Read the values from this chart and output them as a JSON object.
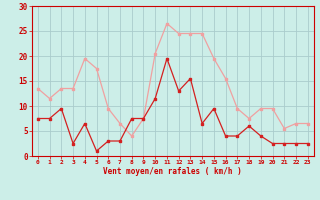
{
  "hours": [
    0,
    1,
    2,
    3,
    4,
    5,
    6,
    7,
    8,
    9,
    10,
    11,
    12,
    13,
    14,
    15,
    16,
    17,
    18,
    19,
    20,
    21,
    22,
    23
  ],
  "wind_avg": [
    7.5,
    7.5,
    9.5,
    2.5,
    6.5,
    1.0,
    3.0,
    3.0,
    7.5,
    7.5,
    11.5,
    19.5,
    13.0,
    15.5,
    6.5,
    9.5,
    4.0,
    4.0,
    6.0,
    4.0,
    2.5,
    2.5,
    2.5,
    2.5
  ],
  "wind_gust": [
    13.5,
    11.5,
    13.5,
    13.5,
    19.5,
    17.5,
    9.5,
    6.5,
    4.0,
    7.5,
    20.5,
    26.5,
    24.5,
    24.5,
    24.5,
    19.5,
    15.5,
    9.5,
    7.5,
    9.5,
    9.5,
    5.5,
    6.5,
    6.5
  ],
  "color_avg": "#d42020",
  "color_gust": "#f0a0a0",
  "bg_color": "#cceee8",
  "grid_color": "#aacccc",
  "axis_label_color": "#cc0000",
  "tick_color": "#cc0000",
  "xlabel": "Vent moyen/en rafales ( km/h )",
  "ylim": [
    0,
    30
  ],
  "yticks": [
    0,
    5,
    10,
    15,
    20,
    25,
    30
  ]
}
